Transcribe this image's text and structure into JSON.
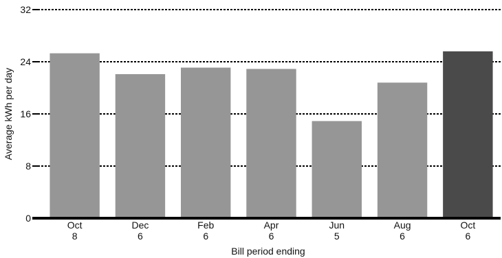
{
  "chart_data": {
    "type": "bar",
    "categories": [
      {
        "month": "Oct",
        "day": "8"
      },
      {
        "month": "Dec",
        "day": "6"
      },
      {
        "month": "Feb",
        "day": "6"
      },
      {
        "month": "Apr",
        "day": "6"
      },
      {
        "month": "Jun",
        "day": "5"
      },
      {
        "month": "Aug",
        "day": "6"
      },
      {
        "month": "Oct",
        "day": "6"
      }
    ],
    "values": [
      25.3,
      22.1,
      23.1,
      22.9,
      14.9,
      20.8,
      25.6
    ],
    "bar_colors": [
      "#969696",
      "#969696",
      "#969696",
      "#969696",
      "#969696",
      "#969696",
      "#4a4a4a"
    ],
    "xlabel": "Bill period ending",
    "ylabel": "Average kWh per day",
    "ylim": [
      0,
      32
    ],
    "yticks": [
      0,
      8,
      16,
      24,
      32
    ],
    "grid": "horizontal dashed",
    "legend": "none"
  }
}
